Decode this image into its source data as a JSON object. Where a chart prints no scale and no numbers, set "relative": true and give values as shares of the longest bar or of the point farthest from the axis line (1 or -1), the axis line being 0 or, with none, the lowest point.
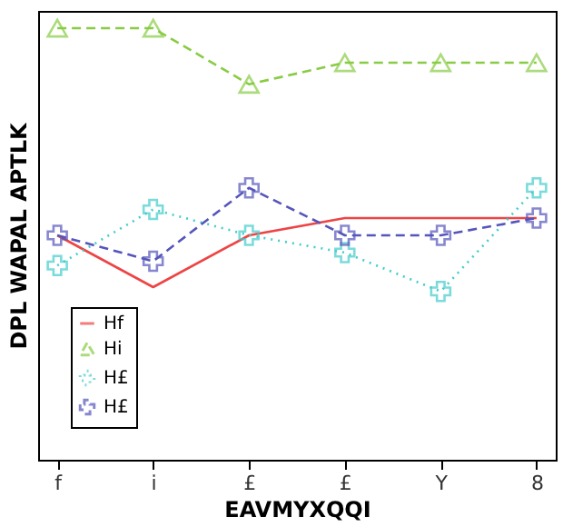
{
  "chart_data": {
    "type": "line",
    "xlabel": "EAVMYXQQI",
    "ylabel": "DPL WAPAL APTLK",
    "categories": [
      "f",
      "i",
      "£",
      "£",
      "Y",
      "8"
    ],
    "relative": true,
    "grid": false,
    "legend": "bottom left",
    "series": [
      {
        "name": "Hf",
        "color": "#ee4444",
        "marker": "none",
        "line_style": "solid",
        "values": [
          0.52,
          0.4,
          0.52,
          0.56,
          0.56,
          0.56
        ]
      },
      {
        "name": "Hi",
        "color": "#88cc44",
        "marker": "triangle",
        "line_style": "dashed",
        "values": [
          1.0,
          1.0,
          0.87,
          0.92,
          0.92,
          0.92
        ]
      },
      {
        "name": "H£",
        "color": "#44cccc",
        "marker": "cross",
        "line_style": "dotted",
        "values": [
          0.45,
          0.58,
          0.52,
          0.48,
          0.39,
          0.63
        ]
      },
      {
        "name": "H£",
        "color": "#5555bb",
        "marker": "cross",
        "line_style": "dashed",
        "values": [
          0.52,
          0.46,
          0.63,
          0.52,
          0.52,
          0.56
        ]
      }
    ]
  }
}
